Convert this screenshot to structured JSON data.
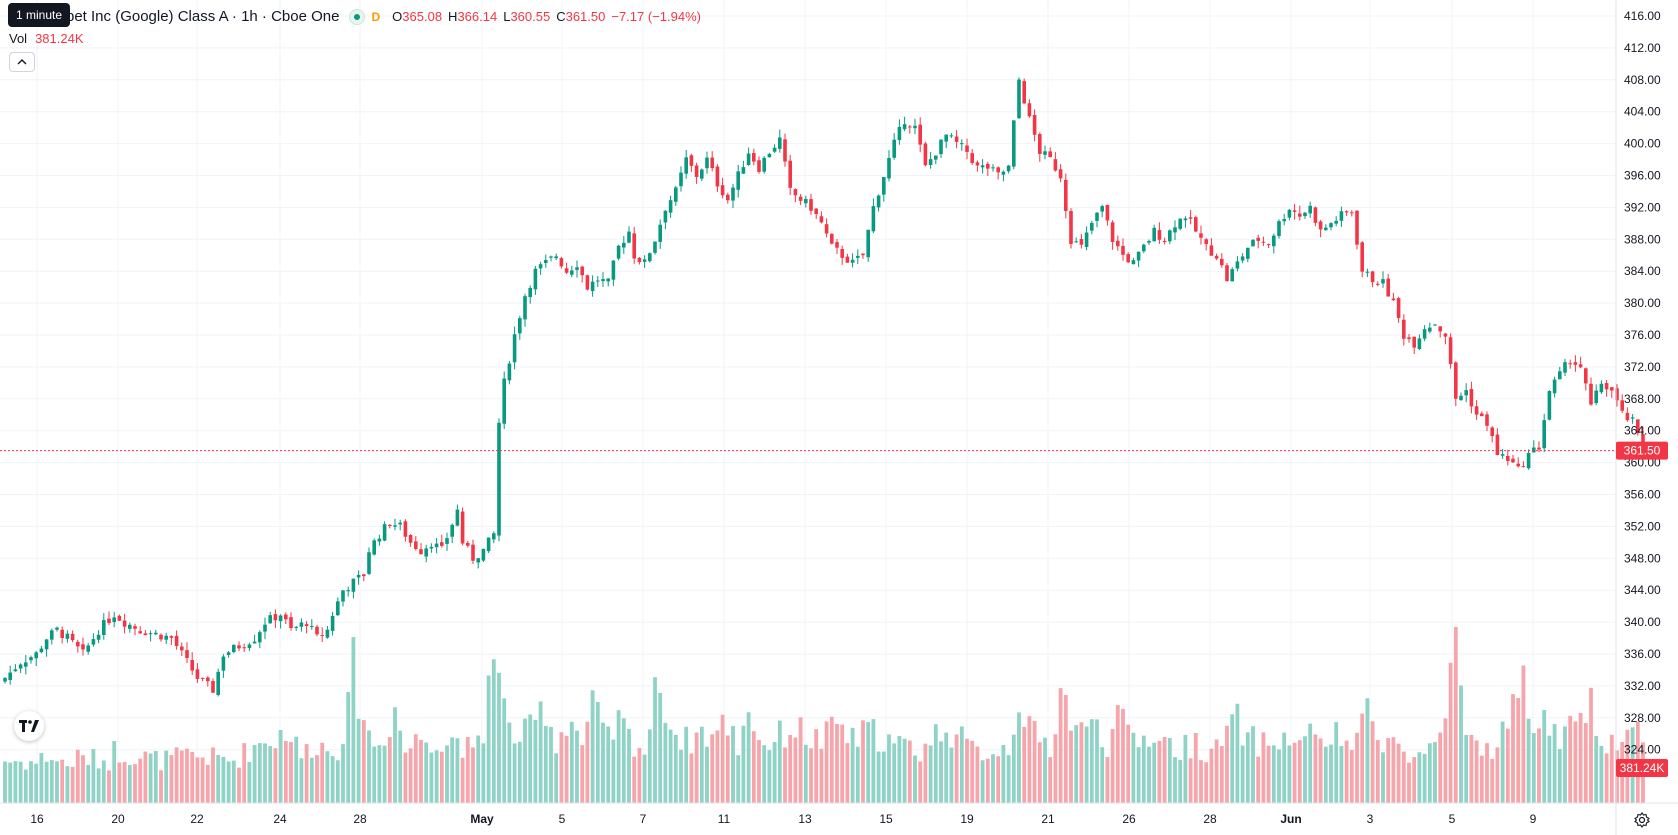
{
  "tooltip": "1 minute",
  "legend": {
    "title": "Alphabet Inc (Google) Class A · 1h · Cboe One",
    "title_visible": "bet Inc (Google) Class A · 1h · Cboe One",
    "badge": "D",
    "open_label": "O",
    "open": "365.08",
    "high_label": "H",
    "high": "366.14",
    "low_label": "L",
    "low": "360.55",
    "close_label": "C",
    "close": "361.50",
    "change": "−7.17 (−1.94%)"
  },
  "volume_legend": {
    "label": "Vol",
    "value": "381.24K"
  },
  "icons": {
    "collapse": "chevron-up-icon",
    "logo": "tradingview-logo",
    "settings": "gear-icon"
  },
  "colors": {
    "up": "#089981",
    "down": "#f23645",
    "vol_up": "#8fd2c6",
    "vol_down": "#f6a6ab",
    "grid": "#f0f3fa",
    "price_line": "#f23645"
  },
  "chart_data": {
    "type": "candlestick",
    "title": "Alphabet Inc (Google) Class A · 1h · Cboe One",
    "interval": "1h",
    "ylim": [
      322,
      418
    ],
    "y_ticks": [
      "416.00",
      "412.00",
      "408.00",
      "404.00",
      "400.00",
      "396.00",
      "392.00",
      "388.00",
      "384.00",
      "380.00",
      "376.00",
      "372.00",
      "368.00",
      "364.00",
      "360.00",
      "356.00",
      "352.00",
      "348.00",
      "344.00",
      "340.00",
      "336.00",
      "332.00",
      "328.00",
      "324.00"
    ],
    "x_ticks": [
      "16",
      "20",
      "22",
      "24",
      "28",
      "May",
      "5",
      "7",
      "11",
      "13",
      "15",
      "19",
      "21",
      "26",
      "28",
      "Jun",
      "3",
      "5",
      "9"
    ],
    "last_price": "361.50",
    "last_volume": "381.24K",
    "grid": true,
    "path": [
      [
        0,
        333
      ],
      [
        3,
        335
      ],
      [
        6,
        336
      ],
      [
        8,
        338
      ],
      [
        10,
        339
      ],
      [
        12,
        338
      ],
      [
        15,
        336
      ],
      [
        18,
        339
      ],
      [
        21,
        341
      ],
      [
        23,
        340
      ],
      [
        26,
        339
      ],
      [
        29,
        338.5
      ],
      [
        32,
        338
      ],
      [
        34,
        336
      ],
      [
        37,
        333
      ],
      [
        40,
        331.5
      ],
      [
        42,
        336
      ],
      [
        45,
        337
      ],
      [
        48,
        338
      ],
      [
        50,
        340
      ],
      [
        53,
        341
      ],
      [
        55,
        339
      ],
      [
        58,
        340
      ],
      [
        60,
        338
      ],
      [
        62,
        339
      ],
      [
        63,
        341
      ],
      [
        65,
        344
      ],
      [
        67,
        345
      ],
      [
        69,
        346
      ],
      [
        70,
        349
      ],
      [
        72,
        351
      ],
      [
        74,
        352.5
      ],
      [
        76,
        352
      ],
      [
        78,
        350
      ],
      [
        80,
        349
      ],
      [
        82,
        350
      ],
      [
        84,
        349
      ],
      [
        87,
        354
      ],
      [
        88,
        350
      ],
      [
        90,
        348
      ],
      [
        92,
        349
      ],
      [
        94,
        351
      ],
      [
        95,
        365
      ],
      [
        96,
        370
      ],
      [
        98,
        376
      ],
      [
        100,
        381
      ],
      [
        102,
        384
      ],
      [
        104,
        385
      ],
      [
        106,
        386
      ],
      [
        108,
        384
      ],
      [
        110,
        385
      ],
      [
        112,
        382
      ],
      [
        114,
        383
      ],
      [
        116,
        382.5
      ],
      [
        118,
        387
      ],
      [
        120,
        389
      ],
      [
        121,
        386
      ],
      [
        123,
        385
      ],
      [
        125,
        388
      ],
      [
        127,
        392
      ],
      [
        129,
        394
      ],
      [
        131,
        398
      ],
      [
        133,
        396
      ],
      [
        135,
        398
      ],
      [
        137,
        395
      ],
      [
        139,
        393
      ],
      [
        141,
        396
      ],
      [
        143,
        399
      ],
      [
        145,
        397
      ],
      [
        147,
        399
      ],
      [
        149,
        400.5
      ],
      [
        151,
        394
      ],
      [
        153,
        393
      ],
      [
        155,
        392
      ],
      [
        157,
        390
      ],
      [
        159,
        387
      ],
      [
        161,
        386
      ],
      [
        163,
        385
      ],
      [
        165,
        386
      ],
      [
        167,
        392
      ],
      [
        169,
        396
      ],
      [
        171,
        400
      ],
      [
        173,
        403
      ],
      [
        175,
        402
      ],
      [
        177,
        397
      ],
      [
        179,
        399
      ],
      [
        181,
        401
      ],
      [
        183,
        400
      ],
      [
        185,
        399
      ],
      [
        187,
        397
      ],
      [
        189,
        397
      ],
      [
        191,
        396
      ],
      [
        193,
        397
      ],
      [
        195,
        408
      ],
      [
        197,
        403
      ],
      [
        199,
        399
      ],
      [
        201,
        398
      ],
      [
        203,
        396
      ],
      [
        205,
        388
      ],
      [
        207,
        387
      ],
      [
        209,
        390
      ],
      [
        211,
        392
      ],
      [
        213,
        388
      ],
      [
        215,
        386
      ],
      [
        217,
        385
      ],
      [
        219,
        387
      ],
      [
        221,
        389
      ],
      [
        223,
        388
      ],
      [
        225,
        390
      ],
      [
        227,
        391
      ],
      [
        229,
        389
      ],
      [
        231,
        387
      ],
      [
        233,
        386
      ],
      [
        235,
        383
      ],
      [
        237,
        385
      ],
      [
        239,
        387
      ],
      [
        241,
        388
      ],
      [
        243,
        387.5
      ],
      [
        245,
        390
      ],
      [
        247,
        392
      ],
      [
        249,
        391
      ],
      [
        251,
        392
      ],
      [
        253,
        389
      ],
      [
        255,
        390
      ],
      [
        257,
        391
      ],
      [
        259,
        391.5
      ],
      [
        261,
        384
      ],
      [
        263,
        383
      ],
      [
        265,
        382.5
      ],
      [
        267,
        380
      ],
      [
        269,
        376
      ],
      [
        271,
        375
      ],
      [
        273,
        377
      ],
      [
        275,
        377.5
      ],
      [
        277,
        376
      ],
      [
        279,
        368
      ],
      [
        281,
        369
      ],
      [
        283,
        366
      ],
      [
        285,
        365
      ],
      [
        287,
        361
      ],
      [
        289,
        360.5
      ],
      [
        291,
        359
      ],
      [
        293,
        361
      ],
      [
        295,
        362
      ],
      [
        297,
        369
      ],
      [
        299,
        371
      ],
      [
        301,
        373
      ],
      [
        303,
        372
      ],
      [
        305,
        367
      ],
      [
        307,
        370
      ],
      [
        309,
        369
      ],
      [
        311,
        366
      ],
      [
        313,
        365.08
      ],
      [
        315,
        361.5
      ]
    ],
    "volume_path": [
      [
        0,
        90
      ],
      [
        6,
        85
      ],
      [
        8,
        100
      ],
      [
        12,
        80
      ],
      [
        14,
        95
      ],
      [
        20,
        90
      ],
      [
        21,
        110
      ],
      [
        25,
        100
      ],
      [
        30,
        90
      ],
      [
        36,
        100
      ],
      [
        40,
        95
      ],
      [
        44,
        90
      ],
      [
        48,
        120
      ],
      [
        51,
        140
      ],
      [
        52,
        130
      ],
      [
        54,
        160
      ],
      [
        57,
        100
      ],
      [
        60,
        130
      ],
      [
        62,
        110
      ],
      [
        64,
        120
      ],
      [
        66,
        190
      ],
      [
        67,
        280
      ],
      [
        70,
        140
      ],
      [
        72,
        120
      ],
      [
        75,
        200
      ],
      [
        77,
        110
      ],
      [
        80,
        140
      ],
      [
        83,
        140
      ],
      [
        84,
        120
      ],
      [
        87,
        140
      ],
      [
        90,
        100
      ],
      [
        92,
        140
      ],
      [
        94,
        380
      ],
      [
        95,
        250
      ],
      [
        97,
        150
      ],
      [
        99,
        140
      ],
      [
        101,
        150
      ],
      [
        103,
        190
      ],
      [
        104,
        210
      ],
      [
        106,
        120
      ],
      [
        108,
        180
      ],
      [
        110,
        160
      ],
      [
        111,
        120
      ],
      [
        113,
        200
      ],
      [
        116,
        130
      ],
      [
        118,
        170
      ],
      [
        120,
        140
      ],
      [
        123,
        110
      ],
      [
        126,
        270
      ],
      [
        128,
        160
      ],
      [
        131,
        130
      ],
      [
        134,
        150
      ],
      [
        136,
        140
      ],
      [
        139,
        170
      ],
      [
        141,
        120
      ],
      [
        143,
        210
      ],
      [
        145,
        130
      ],
      [
        148,
        130
      ],
      [
        150,
        150
      ],
      [
        152,
        160
      ],
      [
        154,
        140
      ],
      [
        157,
        130
      ],
      [
        159,
        150
      ],
      [
        160,
        170
      ],
      [
        163,
        130
      ],
      [
        166,
        150
      ],
      [
        169,
        140
      ],
      [
        171,
        120
      ],
      [
        173,
        120
      ],
      [
        176,
        110
      ],
      [
        178,
        130
      ],
      [
        181,
        170
      ],
      [
        183,
        140
      ],
      [
        186,
        110
      ],
      [
        190,
        110
      ],
      [
        193,
        120
      ],
      [
        195,
        230
      ],
      [
        197,
        150
      ],
      [
        199,
        130
      ],
      [
        201,
        120
      ],
      [
        203,
        240
      ],
      [
        205,
        180
      ],
      [
        208,
        140
      ],
      [
        210,
        190
      ],
      [
        212,
        120
      ],
      [
        214,
        170
      ],
      [
        216,
        150
      ],
      [
        218,
        130
      ],
      [
        221,
        150
      ],
      [
        223,
        130
      ],
      [
        226,
        110
      ],
      [
        229,
        130
      ],
      [
        231,
        110
      ],
      [
        233,
        110
      ],
      [
        235,
        150
      ],
      [
        237,
        170
      ],
      [
        239,
        130
      ],
      [
        241,
        130
      ],
      [
        243,
        120
      ],
      [
        246,
        140
      ],
      [
        248,
        110
      ],
      [
        250,
        170
      ],
      [
        252,
        120
      ],
      [
        255,
        140
      ],
      [
        258,
        130
      ],
      [
        260,
        120
      ],
      [
        262,
        210
      ],
      [
        265,
        140
      ],
      [
        267,
        130
      ],
      [
        270,
        90
      ],
      [
        274,
        110
      ],
      [
        276,
        120
      ],
      [
        279,
        300
      ],
      [
        281,
        150
      ],
      [
        283,
        130
      ],
      [
        285,
        110
      ],
      [
        287,
        130
      ],
      [
        289,
        170
      ],
      [
        291,
        210
      ],
      [
        292,
        290
      ],
      [
        294,
        160
      ],
      [
        295,
        150
      ],
      [
        297,
        180
      ],
      [
        299,
        120
      ],
      [
        301,
        150
      ],
      [
        303,
        160
      ],
      [
        305,
        200
      ],
      [
        308,
        130
      ],
      [
        311,
        140
      ],
      [
        313,
        150
      ],
      [
        315,
        160
      ]
    ],
    "volume_max": 400
  }
}
